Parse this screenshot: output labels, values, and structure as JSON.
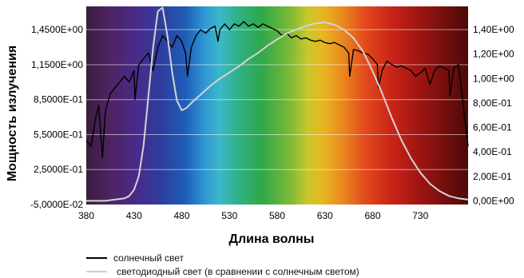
{
  "chart_data": {
    "type": "line",
    "title": "",
    "xlabel": "Длина волны",
    "ylabel": "Мощность излучения",
    "xlim": [
      380,
      780
    ],
    "x_ticks": [
      380,
      430,
      480,
      530,
      580,
      630,
      680,
      730
    ],
    "x_tick_labels": [
      "380",
      "430",
      "480",
      "530",
      "580",
      "630",
      "680",
      "730"
    ],
    "ylim_left": [
      -0.05,
      1.65
    ],
    "y_left_ticks": [
      -0.05,
      0.25,
      0.55,
      0.85,
      1.15,
      1.45
    ],
    "y_left_tick_labels": [
      "-5,0000E-02",
      "2,5000E-01",
      "5,5000E-01",
      "8,5000E-01",
      "1,1500E+00",
      "1,4500E+00"
    ],
    "ylim_right": [
      -0.03,
      1.59
    ],
    "y_right_ticks": [
      0,
      0.2,
      0.4,
      0.6,
      0.8,
      1.0,
      1.2,
      1.4
    ],
    "y_right_tick_labels": [
      "0,00E+00",
      "2,00E-01",
      "4,00E-01",
      "6,00E-01",
      "8,00E-01",
      "1,00E+00",
      "1,20E+00",
      "1,40E+00"
    ],
    "grid": true,
    "legend_position": "bottom",
    "background": "visible spectrum gradient",
    "series": [
      {
        "name": "солнечный свет",
        "axis": "left",
        "color": "#000000",
        "x": [
          380,
          385,
          390,
          393,
          397,
          400,
          405,
          410,
          415,
          420,
          425,
          430,
          431,
          435,
          440,
          445,
          450,
          455,
          460,
          465,
          470,
          475,
          480,
          484,
          486,
          490,
          495,
          500,
          505,
          510,
          515,
          518,
          520,
          525,
          530,
          535,
          540,
          545,
          550,
          555,
          560,
          565,
          570,
          575,
          580,
          585,
          590,
          595,
          600,
          605,
          610,
          615,
          620,
          625,
          630,
          635,
          640,
          645,
          650,
          655,
          656,
          660,
          665,
          670,
          675,
          680,
          685,
          686,
          690,
          695,
          700,
          705,
          710,
          715,
          720,
          725,
          730,
          735,
          740,
          745,
          750,
          755,
          760,
          761,
          765,
          770,
          775,
          780
        ],
        "y": [
          0.5,
          0.45,
          0.7,
          0.8,
          0.35,
          0.75,
          0.9,
          0.95,
          1.0,
          1.05,
          1.0,
          1.1,
          0.85,
          1.15,
          1.2,
          1.25,
          1.1,
          1.3,
          1.4,
          1.35,
          1.3,
          1.4,
          1.35,
          1.25,
          1.05,
          1.3,
          1.4,
          1.45,
          1.42,
          1.46,
          1.48,
          1.35,
          1.45,
          1.5,
          1.45,
          1.5,
          1.48,
          1.52,
          1.48,
          1.5,
          1.47,
          1.5,
          1.48,
          1.46,
          1.44,
          1.4,
          1.42,
          1.38,
          1.4,
          1.37,
          1.38,
          1.36,
          1.35,
          1.36,
          1.34,
          1.33,
          1.34,
          1.32,
          1.3,
          1.25,
          1.05,
          1.28,
          1.27,
          1.25,
          1.24,
          1.2,
          1.15,
          0.95,
          1.1,
          1.18,
          1.15,
          1.13,
          1.14,
          1.12,
          1.1,
          1.05,
          1.08,
          1.12,
          0.98,
          1.1,
          1.14,
          1.12,
          1.1,
          0.88,
          1.12,
          1.15,
          0.8,
          0.45
        ]
      },
      {
        "name": "светодиодный свет (в сравнении с солнечным светом)",
        "axis": "right",
        "color": "#d4d4d4",
        "x": [
          380,
          400,
          410,
          420,
          425,
          430,
          435,
          440,
          445,
          450,
          455,
          460,
          465,
          470,
          475,
          480,
          485,
          490,
          500,
          510,
          520,
          530,
          540,
          550,
          560,
          570,
          580,
          590,
          600,
          610,
          620,
          630,
          640,
          650,
          660,
          670,
          680,
          690,
          700,
          710,
          720,
          730,
          740,
          750,
          760,
          770,
          780
        ],
        "y": [
          0.0,
          0.0,
          0.01,
          0.02,
          0.04,
          0.09,
          0.2,
          0.45,
          0.85,
          1.25,
          1.55,
          1.58,
          1.35,
          1.05,
          0.82,
          0.74,
          0.76,
          0.8,
          0.87,
          0.94,
          1.0,
          1.05,
          1.1,
          1.16,
          1.21,
          1.27,
          1.32,
          1.37,
          1.4,
          1.43,
          1.45,
          1.46,
          1.44,
          1.4,
          1.33,
          1.22,
          1.06,
          0.88,
          0.68,
          0.5,
          0.35,
          0.23,
          0.14,
          0.08,
          0.04,
          0.02,
          0.01
        ]
      }
    ]
  }
}
